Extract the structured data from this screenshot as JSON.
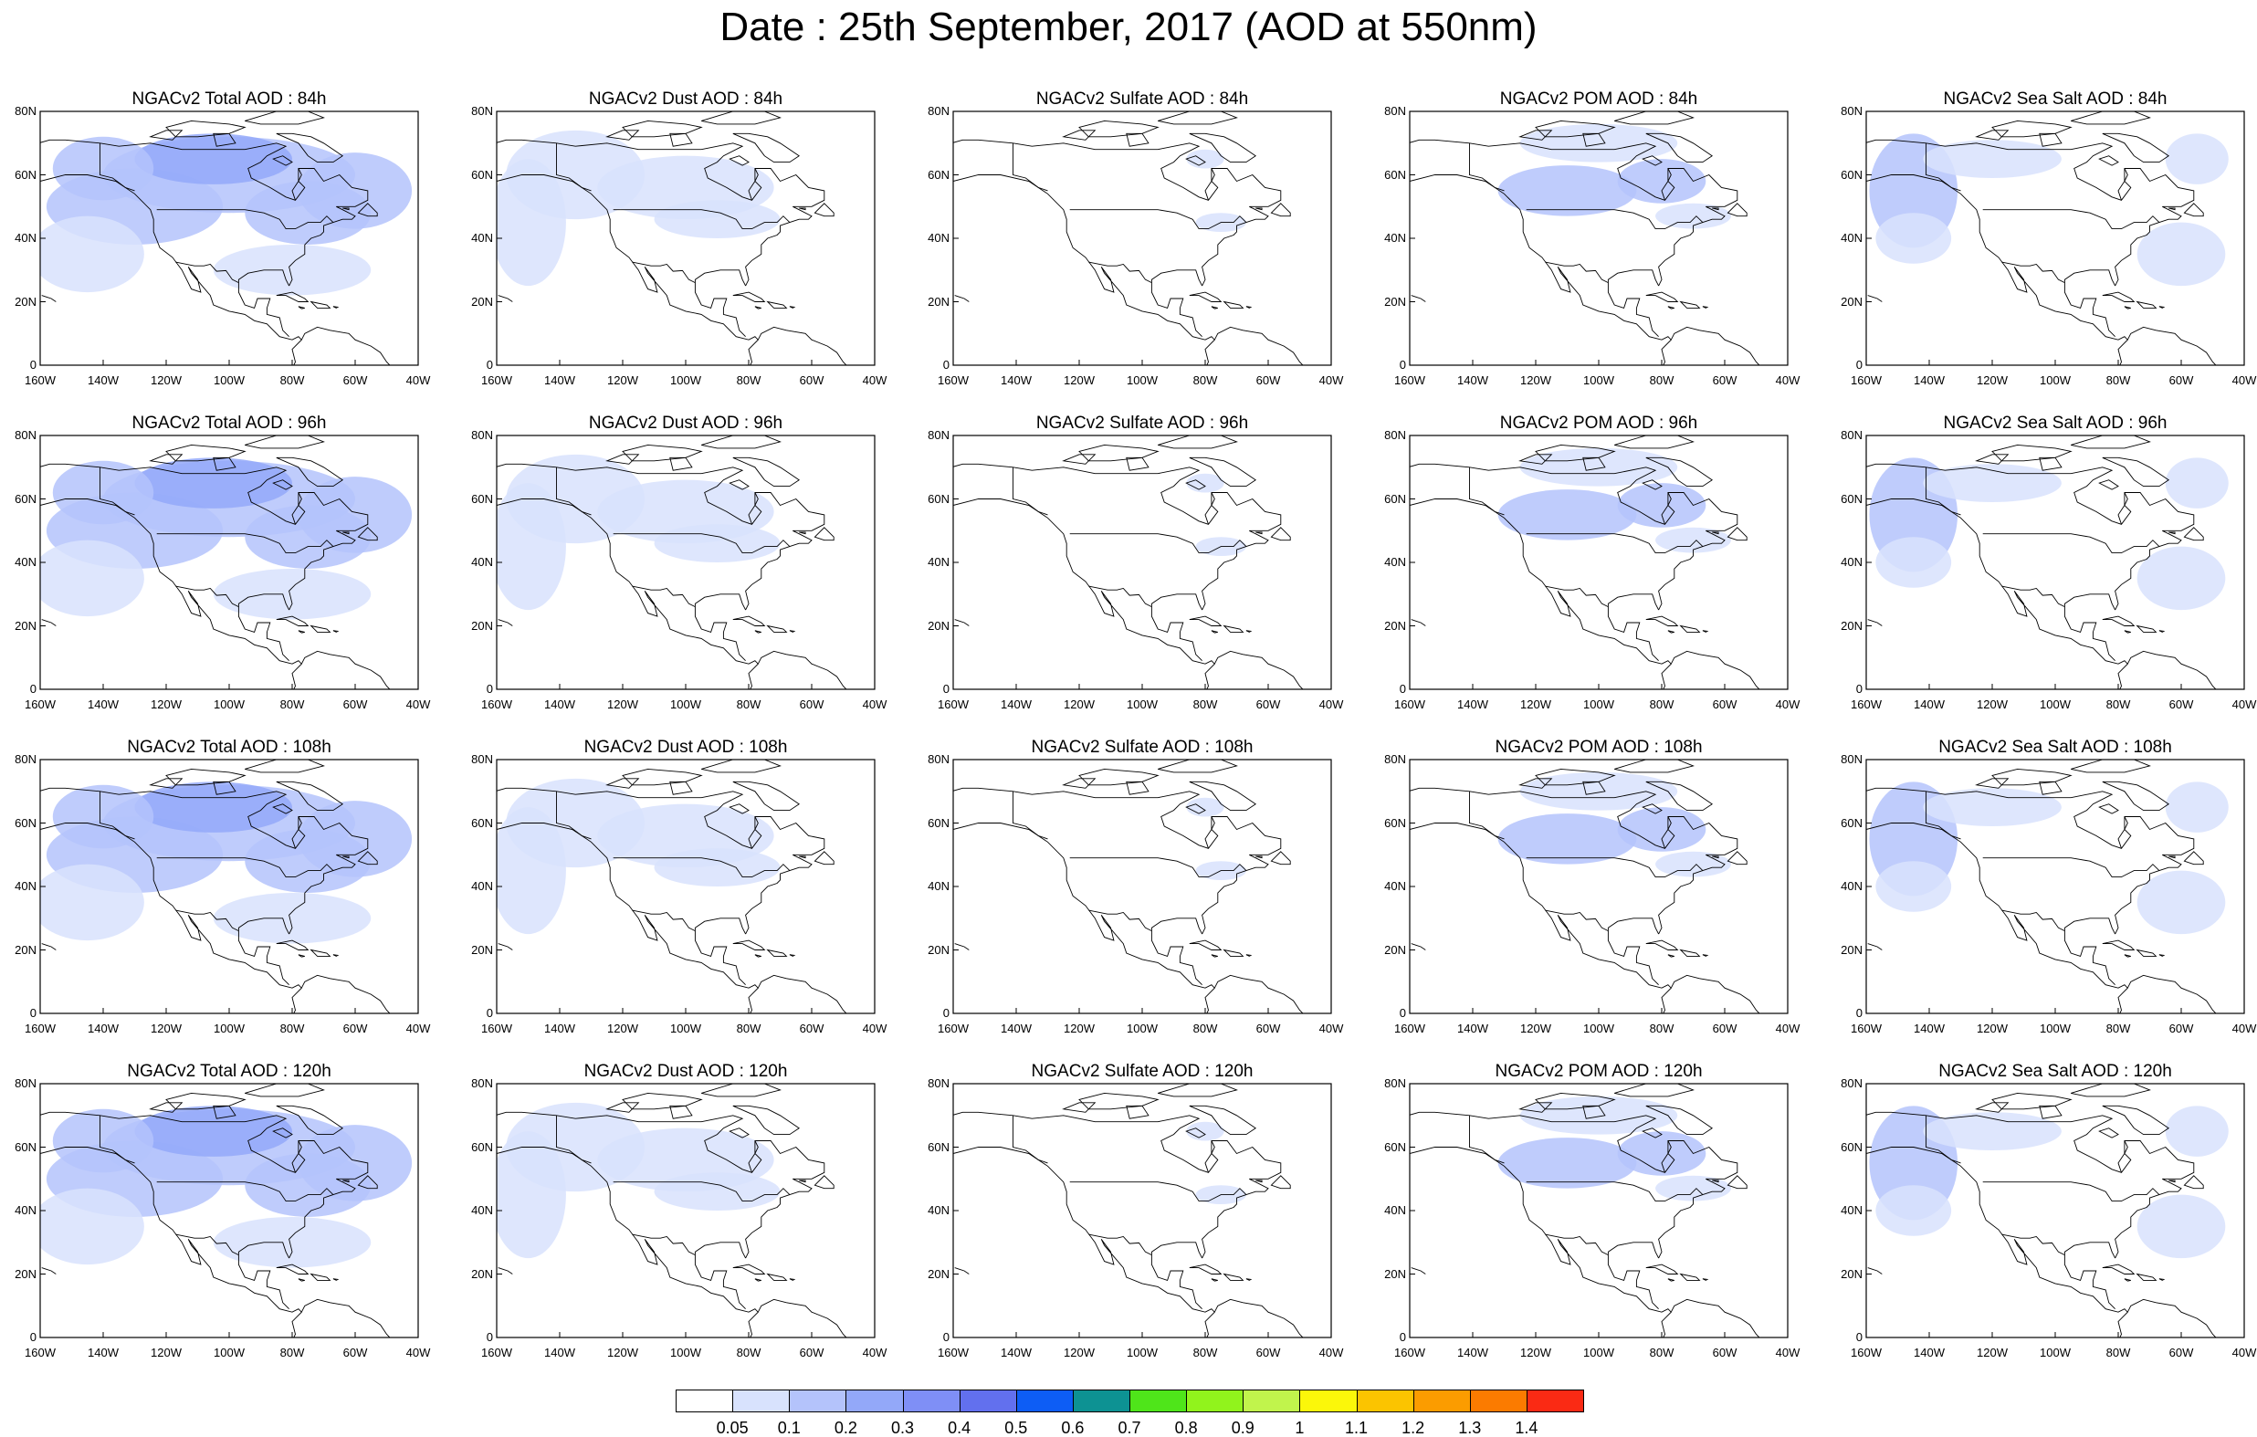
{
  "title": "Date : 25th September, 2017 (AOD at 550nm)",
  "colors": {
    "land_outline": "#000000",
    "background": "#ffffff"
  },
  "map": {
    "projection": "cylindrical equidistant",
    "lon_range": [
      -160,
      -40
    ],
    "lat_range": [
      0,
      80
    ],
    "lat_ticks": [
      "0",
      "20N",
      "40N",
      "60N",
      "80N"
    ],
    "lon_ticks": [
      "160W",
      "140W",
      "120W",
      "100W",
      "80W",
      "60W",
      "40W"
    ]
  },
  "rows": [
    {
      "forecast_hour": "84h",
      "titles": [
        "NGACv2 Total AOD : 84h",
        "NGACv2 Dust AOD : 84h",
        "NGACv2 Sulfate AOD : 84h",
        "NGACv2 POM AOD : 84h",
        "NGACv2 Sea Salt AOD : 84h"
      ]
    },
    {
      "forecast_hour": "96h",
      "titles": [
        "NGACv2 Total AOD : 96h",
        "NGACv2 Dust AOD : 96h",
        "NGACv2 Sulfate AOD : 96h",
        "NGACv2 POM AOD : 96h",
        "NGACv2 Sea Salt AOD : 96h"
      ]
    },
    {
      "forecast_hour": "108h",
      "titles": [
        "NGACv2 Total AOD : 108h",
        "NGACv2 Dust AOD : 108h",
        "NGACv2 Sulfate AOD : 108h",
        "NGACv2 POM AOD : 108h",
        "NGACv2 Sea Salt AOD : 108h"
      ]
    },
    {
      "forecast_hour": "120h",
      "titles": [
        "NGACv2 Total AOD : 120h",
        "NGACv2 Dust AOD : 120h",
        "NGACv2 Sulfate AOD : 120h",
        "NGACv2 POM AOD : 120h",
        "NGACv2 Sea Salt  AOD : 120h"
      ]
    }
  ],
  "columns": [
    "Total",
    "Dust",
    "Sulfate",
    "POM",
    "Sea Salt"
  ],
  "colorbar": {
    "labels": [
      "0.05",
      "0.1",
      "0.2",
      "0.3",
      "0.4",
      "0.5",
      "0.6",
      "0.7",
      "0.8",
      "0.9",
      "1",
      "1.1",
      "1.2",
      "1.3",
      "1.4"
    ],
    "colors": [
      "#ffffff",
      "#d8e2fd",
      "#b4c3fb",
      "#93a8f9",
      "#7f8ff6",
      "#6270ee",
      "#0d5df5",
      "#0d9293",
      "#4fe51a",
      "#91f31c",
      "#c1f44c",
      "#fbf70a",
      "#fbc400",
      "#fb9c00",
      "#fb7b00",
      "#fa2a14"
    ]
  }
}
